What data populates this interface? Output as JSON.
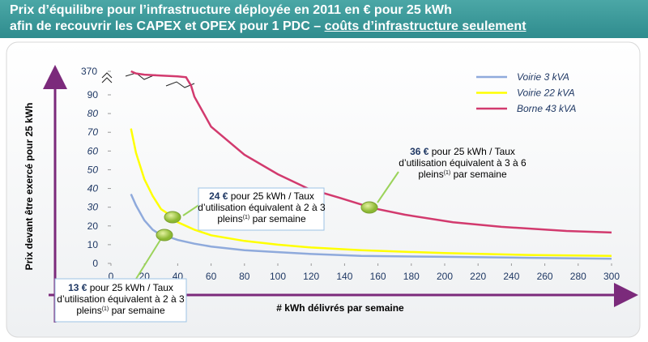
{
  "chart_data": {
    "type": "line",
    "title_lines": [
      "Prix d’équilibre pour l’infrastructure déployée en 2011 en € pour 25 kWh",
      "afin de recouvrir les CAPEX et OPEX pour 1 PDC –"
    ],
    "title_underlined": "coûts d’infrastructure seulement",
    "y_label": "Prix devant être exercé pour 25 kWh",
    "x_label": "# kWh délivrés par semaine",
    "xlim": [
      0,
      300
    ],
    "xticks": [
      0,
      20,
      40,
      60,
      80,
      100,
      120,
      140,
      160,
      180,
      200,
      220,
      240,
      260,
      280,
      300
    ],
    "ylim": [
      0,
      370
    ],
    "yticks": [
      0,
      10,
      20,
      30,
      40,
      50,
      60,
      70,
      80,
      90,
      370
    ],
    "series": [
      {
        "name": "Voirie 3 kVA",
        "color": "#8faadc",
        "x": [
          12,
          15,
          20,
          25,
          30,
          35,
          40,
          50,
          60,
          80,
          100,
          120,
          150,
          200,
          250,
          300
        ],
        "values": [
          37,
          31,
          23,
          18,
          15,
          14,
          12.5,
          10.5,
          9,
          7,
          6,
          5,
          4,
          3.5,
          3,
          2.5
        ]
      },
      {
        "name": "Voirie 22 kVA",
        "color": "#ffff00",
        "x": [
          12,
          15,
          20,
          25,
          30,
          35,
          40,
          50,
          60,
          80,
          100,
          120,
          150,
          200,
          250,
          300
        ],
        "values": [
          72,
          59,
          45,
          36,
          29,
          26,
          22,
          18,
          15,
          12,
          10,
          8.5,
          7,
          5.5,
          4.5,
          4
        ]
      },
      {
        "name": "Borne 43 kVA",
        "color": "#d23a6e",
        "x": [
          12,
          15,
          20,
          30,
          40,
          45,
          48,
          50,
          60,
          80,
          100,
          118,
          137,
          157,
          176,
          205,
          234,
          273,
          300
        ],
        "values": [
          370,
          345,
          330,
          320,
          310,
          300,
          200,
          89,
          73,
          58,
          47.6,
          40,
          35,
          29.5,
          26,
          22,
          19.5,
          17.3,
          16.5
        ]
      }
    ],
    "annotations": [
      {
        "bold": "24 €",
        "lines": [
          " pour 25 kWh / Taux",
          "d’utilisation équivalent à 2 à 3",
          "pleins"
        ],
        "sup": "(1)",
        "tail": " par semaine"
      },
      {
        "bold": "36 €",
        "lines": [
          " pour 25 kWh / Taux",
          "d’utilisation équivalent à 3 à 6",
          "pleins"
        ],
        "sup": "(1)",
        "tail": " par semaine"
      },
      {
        "bold": "13 €",
        "lines": [
          " pour 25 kWh / Taux",
          "d’utilisation équivalent à 2 à 3",
          "pleins"
        ],
        "sup": "(1)",
        "tail": " par semaine"
      }
    ]
  }
}
